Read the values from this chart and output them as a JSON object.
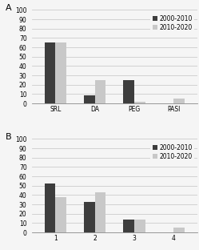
{
  "panel_A": {
    "categories": [
      "SRL",
      "DA",
      "PEG",
      "PASI"
    ],
    "values_2000_2010": [
      65,
      9,
      25,
      0
    ],
    "values_2010_2020": [
      65,
      25,
      2,
      5
    ],
    "color_2000_2010": "#3d3d3d",
    "color_2010_2020": "#c8c8c8",
    "ylim": [
      0,
      100
    ],
    "yticks": [
      0,
      10,
      20,
      30,
      40,
      50,
      60,
      70,
      80,
      90,
      100
    ],
    "legend_labels": [
      "2000-2010",
      "2010-2020"
    ],
    "panel_label": "A"
  },
  "panel_B": {
    "categories": [
      "1",
      "2",
      "3",
      "4"
    ],
    "values_2000_2010": [
      52,
      33,
      14,
      0
    ],
    "values_2010_2020": [
      38,
      43,
      14,
      5
    ],
    "color_2000_2010": "#3d3d3d",
    "color_2010_2020": "#c8c8c8",
    "ylim": [
      0,
      100
    ],
    "yticks": [
      0,
      10,
      20,
      30,
      40,
      50,
      60,
      70,
      80,
      90,
      100
    ],
    "legend_labels": [
      "2000-2010",
      "2010-2020"
    ],
    "panel_label": "B"
  },
  "bar_width": 0.28,
  "background_color": "#f5f5f5",
  "grid_color": "#cccccc",
  "tick_fontsize": 5.5,
  "legend_fontsize": 5.5
}
